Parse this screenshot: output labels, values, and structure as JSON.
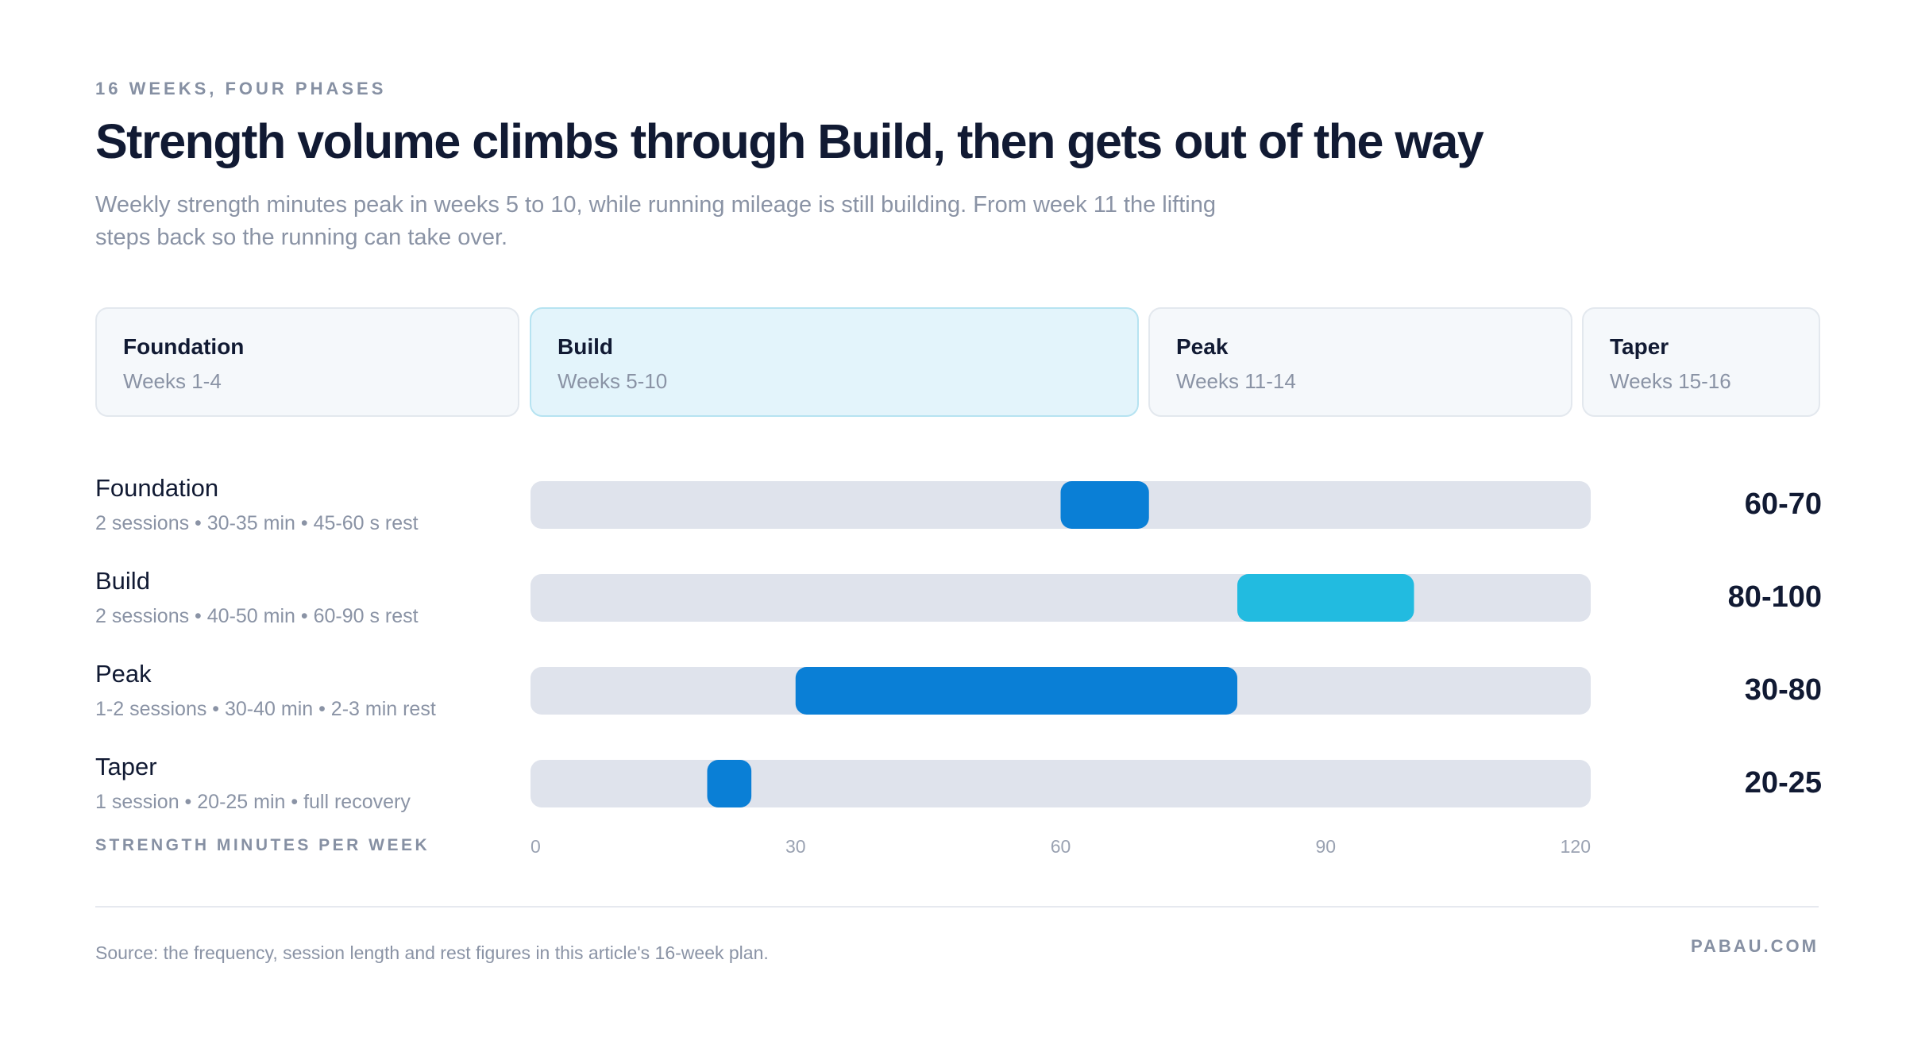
{
  "header": {
    "eyebrow": "16 WEEKS, FOUR PHASES",
    "title": "Strength volume climbs through Build, then gets out of the way",
    "subtitle": "Weekly strength minutes peak in weeks 5 to 10, while running mileage is still building. From week 11 the lifting steps back so the running can take over."
  },
  "phases": [
    {
      "name": "Foundation",
      "weeks": "Weeks 1-4"
    },
    {
      "name": "Build",
      "weeks": "Weeks 5-10"
    },
    {
      "name": "Peak",
      "weeks": "Weeks 11-14"
    },
    {
      "name": "Taper",
      "weeks": "Weeks 15-16"
    }
  ],
  "rows": [
    {
      "label": "Foundation",
      "detail": "2 sessions • 30-35 min • 45-60 s rest",
      "total": "60-70"
    },
    {
      "label": "Build",
      "detail": "2 sessions • 40-50 min • 60-90 s rest",
      "total": "80-100"
    },
    {
      "label": "Peak",
      "detail": "1-2 sessions • 30-40 min • 2-3 min rest",
      "total": "30-80"
    },
    {
      "label": "Taper",
      "detail": "1 session • 20-25 min • full recovery",
      "total": "20-25"
    }
  ],
  "axis_caption": "STRENGTH MINUTES PER WEEK",
  "colors": {
    "track": "#dfe3ec",
    "primary": "#0a7fd6",
    "highlight": "#22bbe0",
    "tick": "#9aa2b2"
  },
  "chart_data": {
    "type": "bar",
    "orientation": "horizontal",
    "representation": "range",
    "categories": [
      "Foundation",
      "Build",
      "Peak",
      "Taper"
    ],
    "ranges": [
      [
        60,
        70
      ],
      [
        80,
        100
      ],
      [
        30,
        80
      ],
      [
        20,
        25
      ]
    ],
    "xlim": [
      0,
      120
    ],
    "xticks": [
      0,
      30,
      60,
      90,
      120
    ],
    "xlabel": "STRENGTH MINUTES PER WEEK",
    "grid": false,
    "legend": "none"
  },
  "footer": {
    "source": "Source: the frequency, session length and rest figures in this article's 16-week plan.",
    "brand": "PABAU.COM"
  }
}
